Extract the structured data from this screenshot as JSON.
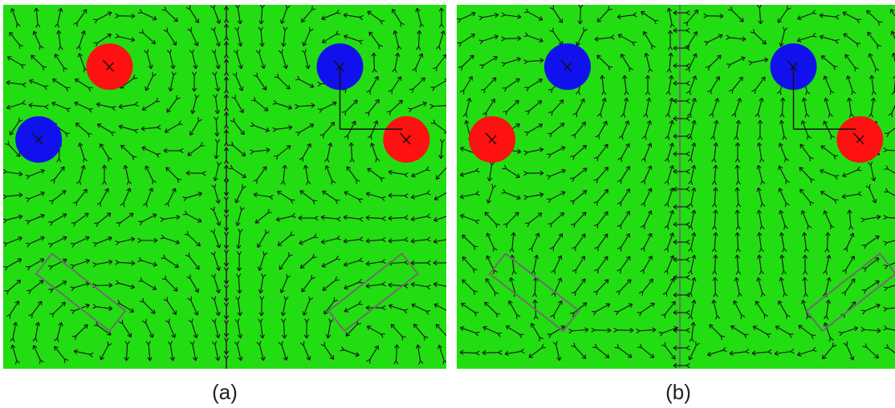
{
  "figure": {
    "background_color": "#22dd11",
    "arrow_color": "#111111",
    "divider_color": "#6e6e6e",
    "outline_color": "#6e6e6e",
    "panels": [
      {
        "id": "a",
        "caption": "(a)",
        "field": "a",
        "divider": "vertical",
        "divider_arrows": "vertical",
        "discs": [
          {
            "name": "red-disc-1",
            "color": "#ff1111",
            "u": 0.24,
            "v": 0.17
          },
          {
            "name": "blue-disc-1",
            "color": "#1111ee",
            "u": 0.08,
            "v": 0.37
          },
          {
            "name": "blue-disc-2",
            "color": "#1111ee",
            "u": 0.76,
            "v": 0.17
          },
          {
            "name": "red-disc-2",
            "color": "#ff1111",
            "u": 0.91,
            "v": 0.37
          }
        ],
        "rectangles": [
          {
            "name": "slot-left",
            "cu": 0.175,
            "cv": 0.79,
            "angle": -52
          },
          {
            "name": "slot-right",
            "cu": 0.835,
            "cv": 0.79,
            "angle": 52
          }
        ]
      },
      {
        "id": "b",
        "caption": "(b)",
        "field": "b",
        "divider": "vertical",
        "divider_arrows": "horizontal",
        "discs": [
          {
            "name": "blue-disc-1",
            "color": "#1111ee",
            "u": 0.25,
            "v": 0.17
          },
          {
            "name": "red-disc-1",
            "color": "#ff1111",
            "u": 0.08,
            "v": 0.37
          },
          {
            "name": "blue-disc-2",
            "color": "#1111ee",
            "u": 0.76,
            "v": 0.17
          },
          {
            "name": "red-disc-2",
            "color": "#ff1111",
            "u": 0.91,
            "v": 0.37
          }
        ],
        "rectangles": [
          {
            "name": "slot-left",
            "cu": 0.175,
            "cv": 0.79,
            "angle": -52
          },
          {
            "name": "slot-right",
            "cu": 0.89,
            "cv": 0.79,
            "angle": 52
          }
        ]
      }
    ]
  }
}
